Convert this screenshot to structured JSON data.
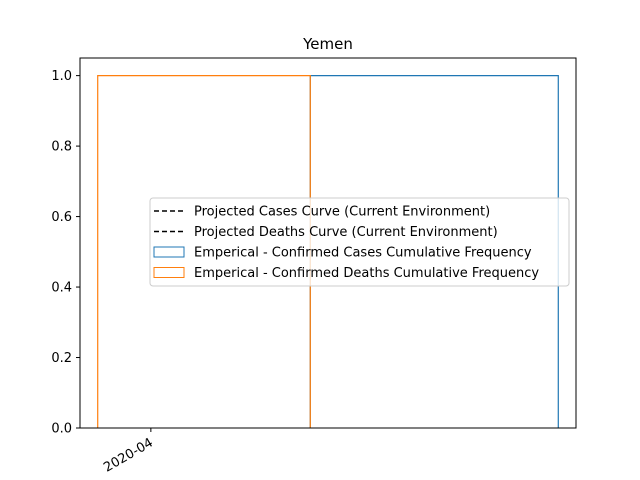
{
  "chart_data": {
    "type": "step-histogram",
    "title": "Yemen",
    "xlabel": "",
    "ylabel": "",
    "x_axis": {
      "type": "date",
      "range": [
        "2020-03-28",
        "2020-04-25"
      ],
      "ticks": [
        "2020-04"
      ],
      "tick_label_rotation_deg": 30
    },
    "y_axis": {
      "range": [
        0,
        1.05
      ],
      "ticks": [
        0.0,
        0.2,
        0.4,
        0.6,
        0.8,
        1.0
      ],
      "tick_labels": [
        "0.0",
        "0.2",
        "0.4",
        "0.6",
        "0.8",
        "1.0"
      ]
    },
    "grid": false,
    "legend": {
      "placement": "center-right",
      "entries": [
        {
          "label": "Projected Cases Curve (Current Environment)",
          "style": "dashed-line",
          "color": "#000000"
        },
        {
          "label": "Projected Deaths Curve (Current Environment)",
          "style": "dashed-line",
          "color": "#000000"
        },
        {
          "label": "Emperical - Confirmed Cases Cumulative Frequency",
          "style": "patch",
          "color": "#1f77b4"
        },
        {
          "label": "Emperical - Confirmed Deaths Cumulative Frequency",
          "style": "patch",
          "color": "#ff7f0e"
        }
      ]
    },
    "series": [
      {
        "name": "Emperical - Confirmed Cases Cumulative Frequency",
        "kind": "step",
        "color": "#1f77b4",
        "bins": [
          {
            "from": "2020-04-10",
            "to": "2020-04-24",
            "value": 1.0
          }
        ]
      },
      {
        "name": "Emperical - Confirmed Deaths Cumulative Frequency",
        "kind": "step",
        "color": "#ff7f0e",
        "bins": [
          {
            "from": "2020-03-29",
            "to": "2020-04-10",
            "value": 1.0
          }
        ]
      }
    ]
  }
}
